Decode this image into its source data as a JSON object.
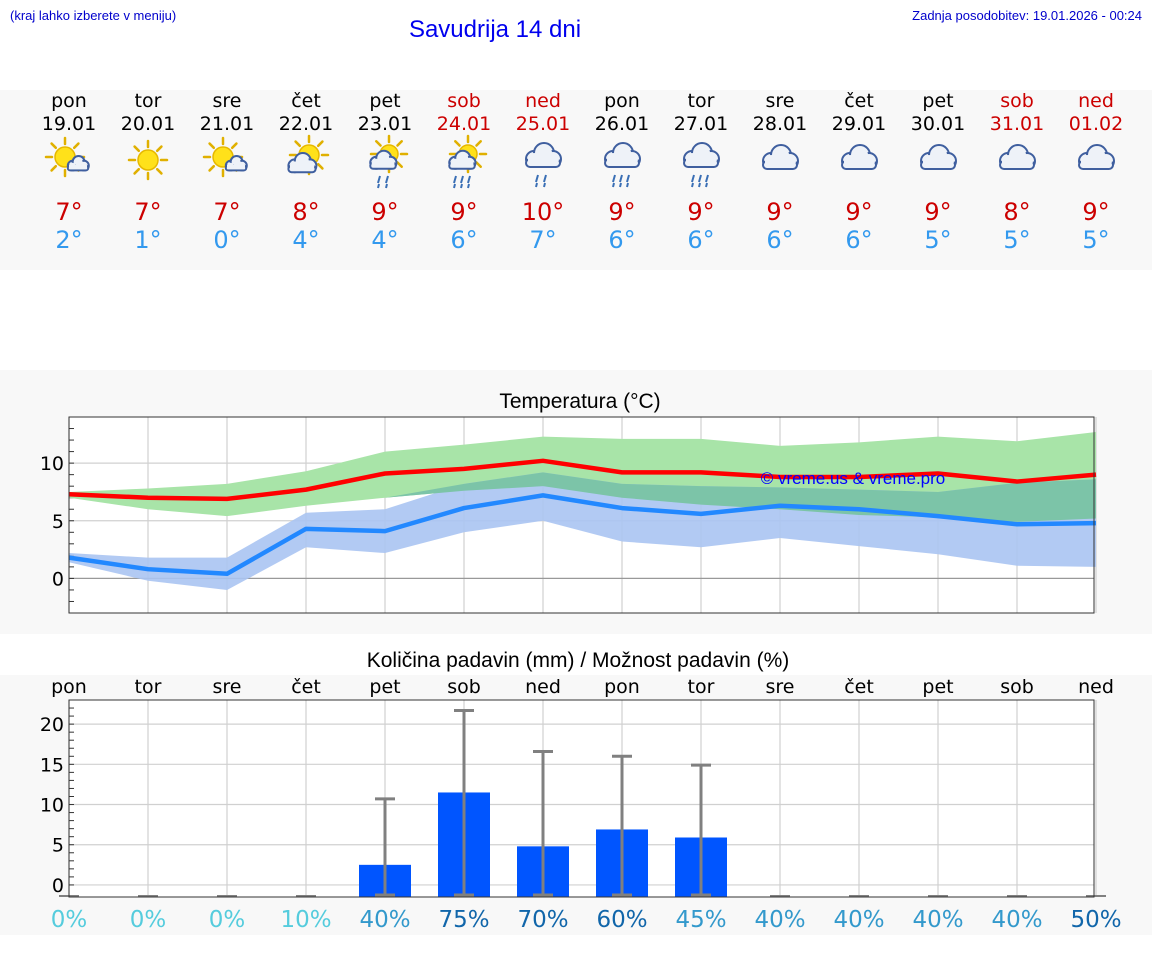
{
  "header": {
    "hint": "(kraj lahko izberete v meniju)",
    "title": "Savudrija 14 dni",
    "updated": "Zadnja posodobitev: 19.01.2026 - 00:24"
  },
  "colors": {
    "weekday": "#000000",
    "weekend": "#cc0000",
    "tmax": "#cc0000",
    "tmin": "#3399ee",
    "max_line": "#ff0000",
    "min_line": "#2288ff",
    "max_band": "#a8e4a8",
    "min_band": "#aac4f2",
    "overlap_band": "#7cc4a8",
    "bar": "#0055ff",
    "whisker": "#808080",
    "watermark": "#0000ff"
  },
  "days": [
    {
      "day": "pon",
      "date": "19.01",
      "icon": "sun-cloud-icon",
      "tmax": "7°",
      "tmin": "2°",
      "weekend": false
    },
    {
      "day": "tor",
      "date": "20.01",
      "icon": "sun-icon",
      "tmax": "7°",
      "tmin": "1°",
      "weekend": false
    },
    {
      "day": "sre",
      "date": "21.01",
      "icon": "sun-cloud-icon",
      "tmax": "7°",
      "tmin": "0°",
      "weekend": false
    },
    {
      "day": "čet",
      "date": "22.01",
      "icon": "sun-big-cloud-icon",
      "tmax": "8°",
      "tmin": "4°",
      "weekend": false
    },
    {
      "day": "pet",
      "date": "23.01",
      "icon": "sun-rain-icon",
      "tmax": "9°",
      "tmin": "4°",
      "weekend": false
    },
    {
      "day": "sob",
      "date": "24.01",
      "icon": "sun-heavy-rain-icon",
      "tmax": "9°",
      "tmin": "6°",
      "weekend": true
    },
    {
      "day": "ned",
      "date": "25.01",
      "icon": "rain-cloud-icon",
      "tmax": "10°",
      "tmin": "7°",
      "weekend": true
    },
    {
      "day": "pon",
      "date": "26.01",
      "icon": "heavy-rain-cloud-icon",
      "tmax": "9°",
      "tmin": "6°",
      "weekend": false
    },
    {
      "day": "tor",
      "date": "27.01",
      "icon": "heavy-rain-cloud-icon",
      "tmax": "9°",
      "tmin": "6°",
      "weekend": false
    },
    {
      "day": "sre",
      "date": "28.01",
      "icon": "cloud-icon",
      "tmax": "9°",
      "tmin": "6°",
      "weekend": false
    },
    {
      "day": "čet",
      "date": "29.01",
      "icon": "cloud-icon",
      "tmax": "9°",
      "tmin": "6°",
      "weekend": false
    },
    {
      "day": "pet",
      "date": "30.01",
      "icon": "cloud-icon",
      "tmax": "9°",
      "tmin": "5°",
      "weekend": false
    },
    {
      "day": "sob",
      "date": "31.01",
      "icon": "cloud-icon",
      "tmax": "8°",
      "tmin": "5°",
      "weekend": true
    },
    {
      "day": "ned",
      "date": "01.02",
      "icon": "cloud-icon",
      "tmax": "9°",
      "tmin": "5°",
      "weekend": true
    }
  ],
  "chart_data": [
    {
      "type": "line",
      "title": "Temperatura (°C)",
      "watermark": "© vreme.us & vreme.pro",
      "ylim": [
        -3,
        14
      ],
      "yticks": [
        0,
        5,
        10
      ],
      "x": [
        1,
        2,
        3,
        4,
        5,
        6,
        7,
        8,
        9,
        10,
        11,
        12,
        13,
        14
      ],
      "series": [
        {
          "name": "max",
          "values": [
            7.3,
            7.0,
            6.9,
            7.7,
            9.1,
            9.5,
            10.2,
            9.2,
            9.2,
            8.8,
            8.8,
            9.1,
            8.4,
            9.0
          ]
        },
        {
          "name": "min",
          "values": [
            1.8,
            0.8,
            0.4,
            4.3,
            4.1,
            6.1,
            7.2,
            6.1,
            5.6,
            6.3,
            6.0,
            5.4,
            4.7,
            4.8
          ]
        }
      ],
      "bands": [
        {
          "name": "max_range",
          "low": [
            7.0,
            6.0,
            5.4,
            6.3,
            7.0,
            7.6,
            8.0,
            7.0,
            6.4,
            6.0,
            5.5,
            5.3,
            4.9,
            5.2
          ],
          "high": [
            7.5,
            7.8,
            8.2,
            9.3,
            11.0,
            11.6,
            12.3,
            12.1,
            12.1,
            11.5,
            11.8,
            12.3,
            11.9,
            12.7
          ]
        },
        {
          "name": "min_range",
          "low": [
            1.4,
            -0.2,
            -1.0,
            2.7,
            2.2,
            4.0,
            5.0,
            3.2,
            2.7,
            3.5,
            2.8,
            2.1,
            1.1,
            1.0
          ],
          "high": [
            2.2,
            1.8,
            1.8,
            5.7,
            6.0,
            8.2,
            9.2,
            8.2,
            8.0,
            7.9,
            7.7,
            7.5,
            8.3,
            8.6
          ]
        }
      ]
    },
    {
      "type": "bar",
      "title": "Količina padavin (mm) / Možnost padavin (%)",
      "categories": [
        "pon",
        "tor",
        "sre",
        "čet",
        "pet",
        "sob",
        "ned",
        "pon",
        "tor",
        "sre",
        "čet",
        "pet",
        "sob",
        "ned"
      ],
      "values": [
        0,
        0,
        0,
        0,
        2.5,
        11.5,
        4.8,
        6.9,
        5.9,
        0,
        0,
        0,
        0,
        0
      ],
      "error_high": [
        0,
        0,
        0,
        0,
        10.7,
        21.7,
        16.6,
        16.0,
        14.9,
        0,
        0,
        0,
        0,
        0
      ],
      "error_low": [
        0,
        0,
        0,
        0,
        0,
        0,
        0,
        0,
        0,
        0,
        0,
        0,
        0,
        0
      ],
      "ylim": [
        -1.5,
        23
      ],
      "yticks": [
        0,
        5,
        10,
        15,
        20
      ],
      "probability": [
        "0%",
        "0%",
        "0%",
        "10%",
        "40%",
        "75%",
        "70%",
        "60%",
        "45%",
        "40%",
        "40%",
        "40%",
        "40%",
        "50%"
      ],
      "probability_colors": [
        "#55ccdd",
        "#55ccdd",
        "#55ccdd",
        "#55ccdd",
        "#3399cc",
        "#1166aa",
        "#1166aa",
        "#1166aa",
        "#3399cc",
        "#3399cc",
        "#3399cc",
        "#3399cc",
        "#3399cc",
        "#1166aa"
      ]
    }
  ]
}
